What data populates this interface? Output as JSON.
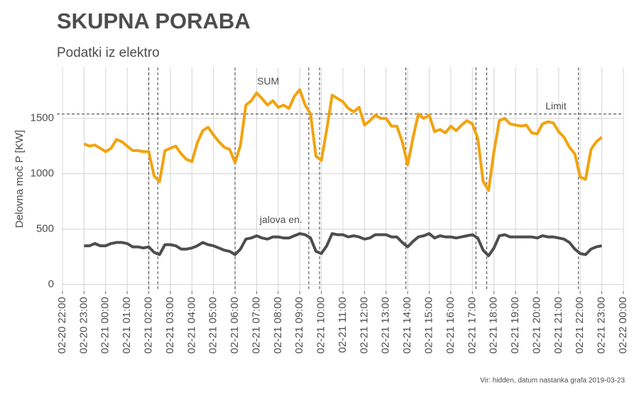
{
  "chart_data": {
    "type": "line",
    "title": "SKUPNA PORABA",
    "subtitle": "Podatki iz elektro",
    "ylabel": "Delovna moč P [KW]",
    "caption": "Vir: hidden, datum nastanka grafa  2019-03-23",
    "x": [
      "02-20 23:00",
      "02-20 23:15",
      "02-20 23:30",
      "02-20 23:45",
      "02-21 00:00",
      "02-21 00:15",
      "02-21 00:30",
      "02-21 00:45",
      "02-21 01:00",
      "02-21 01:15",
      "02-21 01:30",
      "02-21 01:45",
      "02-21 02:00",
      "02-21 02:15",
      "02-21 02:30",
      "02-21 02:45",
      "02-21 03:00",
      "02-21 03:15",
      "02-21 03:30",
      "02-21 03:45",
      "02-21 04:00",
      "02-21 04:15",
      "02-21 04:30",
      "02-21 04:45",
      "02-21 05:00",
      "02-21 05:15",
      "02-21 05:30",
      "02-21 05:45",
      "02-21 06:00",
      "02-21 06:15",
      "02-21 06:30",
      "02-21 06:45",
      "02-21 07:00",
      "02-21 07:15",
      "02-21 07:30",
      "02-21 07:45",
      "02-21 08:00",
      "02-21 08:15",
      "02-21 08:30",
      "02-21 08:45",
      "02-21 09:00",
      "02-21 09:15",
      "02-21 09:30",
      "02-21 09:45",
      "02-21 10:00",
      "02-21 10:15",
      "02-21 10:30",
      "02-21 10:45",
      "02-21 11:00",
      "02-21 11:15",
      "02-21 11:30",
      "02-21 11:45",
      "02-21 12:00",
      "02-21 12:15",
      "02-21 12:30",
      "02-21 12:45",
      "02-21 13:00",
      "02-21 13:15",
      "02-21 13:30",
      "02-21 13:45",
      "02-21 14:00",
      "02-21 14:15",
      "02-21 14:30",
      "02-21 14:45",
      "02-21 15:00",
      "02-21 15:15",
      "02-21 15:30",
      "02-21 15:45",
      "02-21 16:00",
      "02-21 16:15",
      "02-21 16:30",
      "02-21 16:45",
      "02-21 17:00",
      "02-21 17:15",
      "02-21 17:30",
      "02-21 17:45",
      "02-21 18:00",
      "02-21 18:15",
      "02-21 18:30",
      "02-21 18:45",
      "02-21 19:00",
      "02-21 19:15",
      "02-21 19:30",
      "02-21 19:45",
      "02-21 20:00",
      "02-21 20:15",
      "02-21 20:30",
      "02-21 20:45",
      "02-21 21:00",
      "02-21 21:15",
      "02-21 21:30",
      "02-21 21:45",
      "02-21 22:00",
      "02-21 22:15",
      "02-21 22:30",
      "02-21 22:45",
      "02-21 23:00"
    ],
    "series": [
      {
        "name": "SUM",
        "color": "#f2a30f",
        "values": [
          1270,
          1250,
          1260,
          1230,
          1200,
          1230,
          1310,
          1290,
          1250,
          1210,
          1210,
          1200,
          1200,
          980,
          930,
          1210,
          1230,
          1250,
          1180,
          1130,
          1110,
          1280,
          1390,
          1420,
          1350,
          1290,
          1240,
          1220,
          1100,
          1260,
          1620,
          1660,
          1730,
          1680,
          1620,
          1660,
          1600,
          1620,
          1590,
          1700,
          1760,
          1620,
          1540,
          1160,
          1120,
          1400,
          1710,
          1680,
          1650,
          1590,
          1560,
          1600,
          1440,
          1480,
          1530,
          1500,
          1500,
          1430,
          1430,
          1290,
          1080,
          1330,
          1540,
          1500,
          1530,
          1380,
          1400,
          1370,
          1430,
          1390,
          1440,
          1480,
          1450,
          1320,
          930,
          850,
          1200,
          1480,
          1500,
          1450,
          1440,
          1430,
          1440,
          1370,
          1360,
          1450,
          1470,
          1460,
          1380,
          1330,
          1240,
          1180,
          970,
          950,
          1220,
          1290,
          1330
        ]
      },
      {
        "name": "jalova en.",
        "color": "#4d4d4d",
        "values": [
          350,
          350,
          370,
          350,
          350,
          370,
          380,
          380,
          370,
          340,
          340,
          330,
          340,
          290,
          270,
          360,
          360,
          350,
          320,
          320,
          330,
          350,
          380,
          360,
          350,
          330,
          310,
          300,
          270,
          320,
          410,
          420,
          440,
          420,
          410,
          430,
          430,
          420,
          420,
          440,
          460,
          450,
          420,
          300,
          280,
          350,
          460,
          450,
          450,
          430,
          440,
          430,
          410,
          420,
          450,
          450,
          450,
          430,
          430,
          380,
          340,
          390,
          430,
          440,
          460,
          420,
          440,
          430,
          430,
          420,
          430,
          440,
          450,
          420,
          310,
          260,
          330,
          440,
          450,
          430,
          430,
          430,
          430,
          430,
          420,
          440,
          430,
          430,
          420,
          410,
          380,
          320,
          280,
          270,
          320,
          340,
          350
        ]
      }
    ],
    "annotations": [
      {
        "text": "SUM",
        "x": "02-21 07:32",
        "y": 1830,
        "color": "#f2a30f"
      },
      {
        "text": "jalova en.",
        "x": "02-21 08:08",
        "y": 580,
        "color": "#4d4d4d"
      }
    ],
    "limit": {
      "value": 1540,
      "label": "Limit"
    },
    "vlines": [
      "02-21 02:00",
      "02-21 02:25",
      "02-21 06:00",
      "02-21 09:25",
      "02-21 09:55",
      "02-21 13:55",
      "02-21 17:10",
      "02-21 17:40",
      "02-21 21:55"
    ],
    "xlim": [
      "02-20 22:00",
      "02-22 00:00"
    ],
    "xticks": [
      "02-20 22:00",
      "02-20 23:00",
      "02-21 00:00",
      "02-21 01:00",
      "02-21 02:00",
      "02-21 03:00",
      "02-21 04:00",
      "02-21 05:00",
      "02-21 06:00",
      "02-21 07:00",
      "02-21 08:00",
      "02-21 09:00",
      "02-21 10:00",
      "02-21 11:00",
      "02-21 12:00",
      "02-21 13:00",
      "02-21 14:00",
      "02-21 15:00",
      "02-21 16:00",
      "02-21 17:00",
      "02-21 18:00",
      "02-21 19:00",
      "02-21 20:00",
      "02-21 21:00",
      "02-21 22:00",
      "02-21 23:00",
      "02-22 00:00"
    ],
    "ylim": [
      -60,
      1960
    ],
    "yticks": [
      0,
      500,
      1000,
      1500
    ],
    "grid": true
  }
}
